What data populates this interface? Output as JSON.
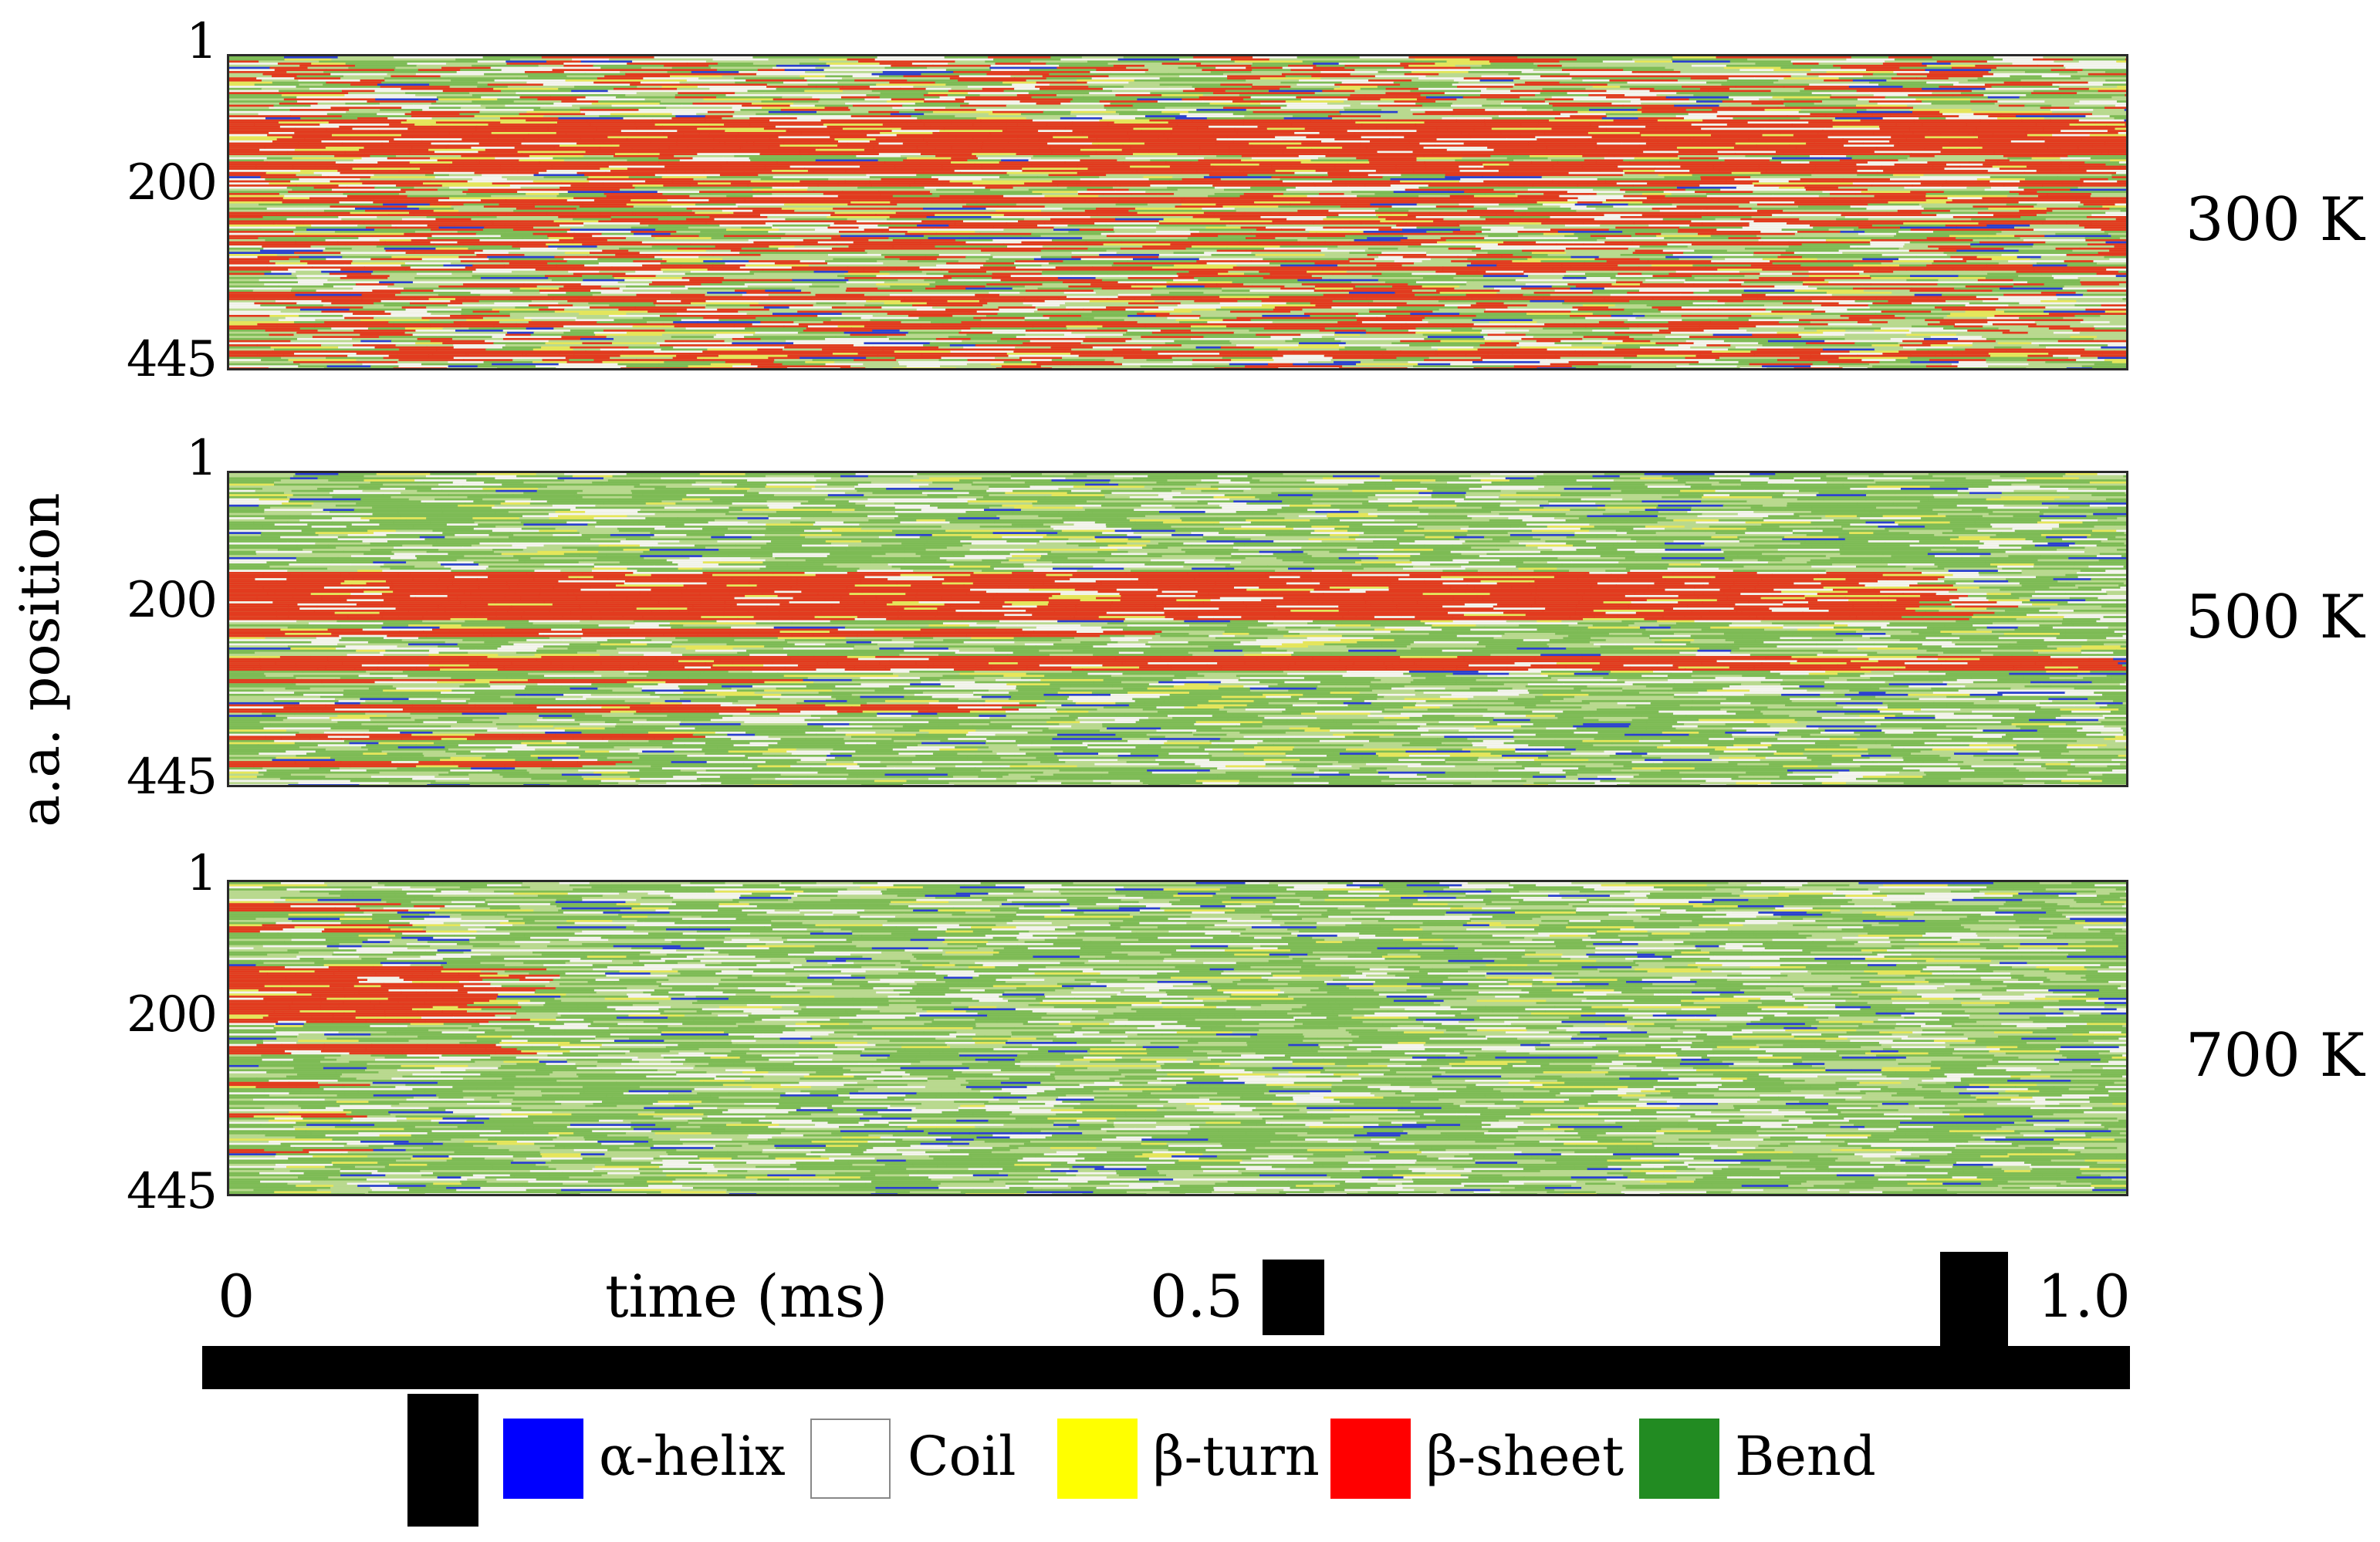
{
  "chart_data": {
    "type": "heatmap",
    "ylabel": "a.a. position",
    "xlabel": "time (ms)",
    "yticks": [
      "1",
      "200",
      "445"
    ],
    "y_range": [
      1,
      445
    ],
    "xticks": [
      "0",
      "0.5",
      "1.0"
    ],
    "x_range": [
      0,
      1.0
    ],
    "panels": [
      {
        "label": "300 K",
        "dominant": [
          "β-sheet",
          "Bend",
          "Coil"
        ],
        "sheet_bands": [
          [
            90,
            140
          ],
          [
            148,
            168
          ],
          [
            176,
            186
          ],
          [
            200,
            210
          ],
          [
            220,
            226
          ],
          [
            232,
            240
          ],
          [
            262,
            268
          ],
          [
            300,
            306
          ],
          [
            340,
            346
          ],
          [
            380,
            386
          ],
          [
            420,
            428
          ]
        ],
        "sheet_persistence": [
          1.0,
          1.0,
          0.95,
          1.0,
          0.9,
          1.0,
          0.85,
          1.0,
          0.9,
          0.8,
          1.0
        ]
      },
      {
        "label": "500 K",
        "dominant": [
          "Bend",
          "Coil",
          "β-sheet"
        ],
        "sheet_bands": [
          [
            140,
            210
          ],
          [
            220,
            232
          ],
          [
            260,
            280
          ],
          [
            292,
            300
          ],
          [
            330,
            340
          ],
          [
            370,
            380
          ],
          [
            410,
            420
          ]
        ],
        "sheet_persistence": [
          0.9,
          0.45,
          1.0,
          0.3,
          0.4,
          0.25,
          0.2
        ]
      },
      {
        "label": "700 K",
        "dominant": [
          "Bend",
          "Coil"
        ],
        "sheet_bands": [
          [
            30,
            40
          ],
          [
            60,
            70
          ],
          [
            120,
            200
          ],
          [
            230,
            245
          ],
          [
            285,
            292
          ],
          [
            330,
            336
          ],
          [
            380,
            386
          ]
        ],
        "sheet_persistence": [
          0.08,
          0.07,
          0.13,
          0.14,
          0.06,
          0.05,
          0.04
        ]
      }
    ],
    "legend": [
      {
        "name": "α-helix",
        "color": "#0000ff"
      },
      {
        "name": "Coil",
        "color": "#ffffff"
      },
      {
        "name": "β-turn",
        "color": "#ffff00"
      },
      {
        "name": "β-sheet",
        "color": "#ff0000"
      },
      {
        "name": "Bend",
        "color": "#228b22"
      }
    ],
    "colors": {
      "alpha_helix": "#2a3fd0",
      "coil": "#f4f4ee",
      "beta_turn": "#e6e65a",
      "beta_sheet": "#e23a1e",
      "bend": "#7dbb55",
      "bend_light": "#b9d98f"
    }
  }
}
